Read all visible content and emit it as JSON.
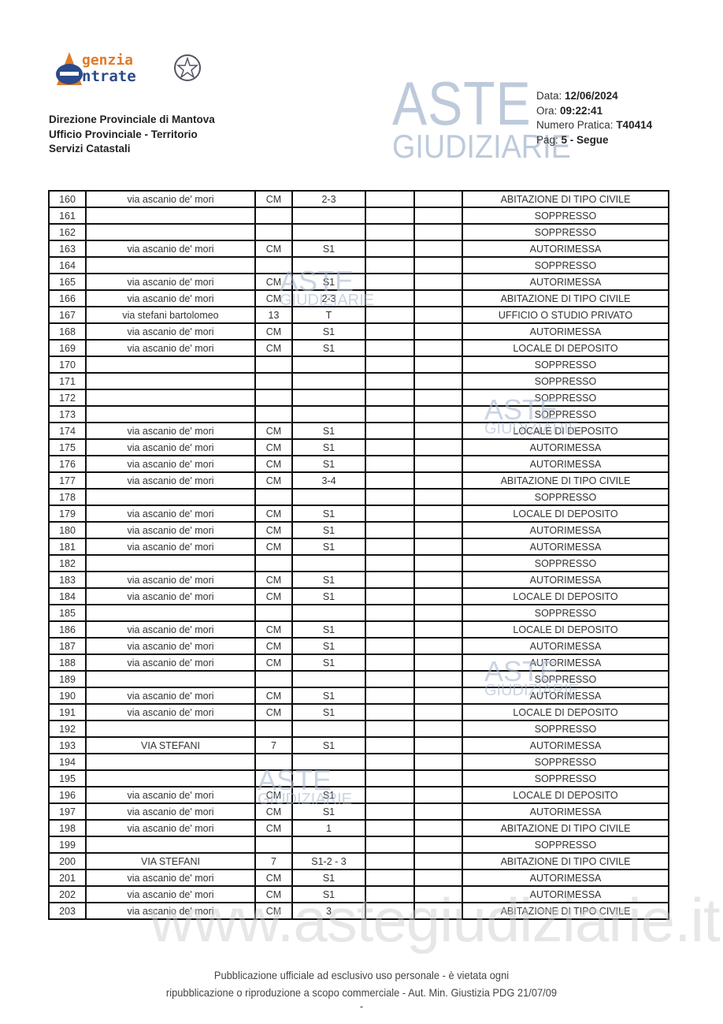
{
  "header": {
    "logo_text": "Agenzia Entrate",
    "office_lines": [
      "Direzione Provinciale di Mantova",
      "Ufficio Provinciale - Territorio",
      "Servizi Catastali"
    ],
    "data_label": "Data:",
    "data_value": "12/06/2024",
    "ora_label": "Ora:",
    "ora_value": "09:22:41",
    "pratica_label": "Numero Pratica:",
    "pratica_value": "T40414",
    "pag_label": "Pag:",
    "pag_value": "5 - Segue"
  },
  "watermark": {
    "line1": "ASTE",
    "line2": "GIUDIZIARIE",
    "url": "www.astegiudiziarie.it"
  },
  "table": {
    "rows": [
      [
        "160",
        "via ascanio de' mori",
        "CM",
        "2-3",
        "",
        "",
        "ABITAZIONE DI TIPO CIVILE"
      ],
      [
        "161",
        "",
        "",
        "",
        "",
        "",
        "SOPPRESSO"
      ],
      [
        "162",
        "",
        "",
        "",
        "",
        "",
        "SOPPRESSO"
      ],
      [
        "163",
        "via ascanio de' mori",
        "CM",
        "S1",
        "",
        "",
        "AUTORIMESSA"
      ],
      [
        "164",
        "",
        "",
        "",
        "",
        "",
        "SOPPRESSO"
      ],
      [
        "165",
        "via ascanio de' mori",
        "CM",
        "S1",
        "",
        "",
        "AUTORIMESSA"
      ],
      [
        "166",
        "via ascanio de' mori",
        "CM",
        "2-3",
        "",
        "",
        "ABITAZIONE DI TIPO CIVILE"
      ],
      [
        "167",
        "via stefani bartolomeo",
        "13",
        "T",
        "",
        "",
        "UFFICIO O STUDIO PRIVATO"
      ],
      [
        "168",
        "via ascanio de' mori",
        "CM",
        "S1",
        "",
        "",
        "AUTORIMESSA"
      ],
      [
        "169",
        "via ascanio de' mori",
        "CM",
        "S1",
        "",
        "",
        "LOCALE DI DEPOSITO"
      ],
      [
        "170",
        "",
        "",
        "",
        "",
        "",
        "SOPPRESSO"
      ],
      [
        "171",
        "",
        "",
        "",
        "",
        "",
        "SOPPRESSO"
      ],
      [
        "172",
        "",
        "",
        "",
        "",
        "",
        "SOPPRESSO"
      ],
      [
        "173",
        "",
        "",
        "",
        "",
        "",
        "SOPPRESSO"
      ],
      [
        "174",
        "via ascanio de' mori",
        "CM",
        "S1",
        "",
        "",
        "LOCALE DI DEPOSITO"
      ],
      [
        "175",
        "via ascanio de' mori",
        "CM",
        "S1",
        "",
        "",
        "AUTORIMESSA"
      ],
      [
        "176",
        "via ascanio de' mori",
        "CM",
        "S1",
        "",
        "",
        "AUTORIMESSA"
      ],
      [
        "177",
        "via ascanio de' mori",
        "CM",
        "3-4",
        "",
        "",
        "ABITAZIONE DI TIPO CIVILE"
      ],
      [
        "178",
        "",
        "",
        "",
        "",
        "",
        "SOPPRESSO"
      ],
      [
        "179",
        "via ascanio de' mori",
        "CM",
        "S1",
        "",
        "",
        "LOCALE DI DEPOSITO"
      ],
      [
        "180",
        "via ascanio de' mori",
        "CM",
        "S1",
        "",
        "",
        "AUTORIMESSA"
      ],
      [
        "181",
        "via ascanio de' mori",
        "CM",
        "S1",
        "",
        "",
        "AUTORIMESSA"
      ],
      [
        "182",
        "",
        "",
        "",
        "",
        "",
        "SOPPRESSO"
      ],
      [
        "183",
        "via ascanio de' mori",
        "CM",
        "S1",
        "",
        "",
        "AUTORIMESSA"
      ],
      [
        "184",
        "via ascanio de' mori",
        "CM",
        "S1",
        "",
        "",
        "LOCALE DI DEPOSITO"
      ],
      [
        "185",
        "",
        "",
        "",
        "",
        "",
        "SOPPRESSO"
      ],
      [
        "186",
        "via ascanio de' mori",
        "CM",
        "S1",
        "",
        "",
        "LOCALE DI DEPOSITO"
      ],
      [
        "187",
        "via ascanio de' mori",
        "CM",
        "S1",
        "",
        "",
        "AUTORIMESSA"
      ],
      [
        "188",
        "via ascanio de' mori",
        "CM",
        "S1",
        "",
        "",
        "AUTORIMESSA"
      ],
      [
        "189",
        "",
        "",
        "",
        "",
        "",
        "SOPPRESSO"
      ],
      [
        "190",
        "via ascanio de' mori",
        "CM",
        "S1",
        "",
        "",
        "AUTORIMESSA"
      ],
      [
        "191",
        "via ascanio de' mori",
        "CM",
        "S1",
        "",
        "",
        "LOCALE DI DEPOSITO"
      ],
      [
        "192",
        "",
        "",
        "",
        "",
        "",
        "SOPPRESSO"
      ],
      [
        "193",
        "VIA STEFANI",
        "7",
        "S1",
        "",
        "",
        "AUTORIMESSA"
      ],
      [
        "194",
        "",
        "",
        "",
        "",
        "",
        "SOPPRESSO"
      ],
      [
        "195",
        "",
        "",
        "",
        "",
        "",
        "SOPPRESSO"
      ],
      [
        "196",
        "via ascanio de' mori",
        "CM",
        "S1",
        "",
        "",
        "LOCALE DI DEPOSITO"
      ],
      [
        "197",
        "via ascanio de' mori",
        "CM",
        "S1",
        "",
        "",
        "AUTORIMESSA"
      ],
      [
        "198",
        "via ascanio de' mori",
        "CM",
        "1",
        "",
        "",
        "ABITAZIONE DI TIPO CIVILE"
      ],
      [
        "199",
        "",
        "",
        "",
        "",
        "",
        "SOPPRESSO"
      ],
      [
        "200",
        "VIA STEFANI",
        "7",
        "S1-2 - 3",
        "",
        "",
        "ABITAZIONE DI TIPO CIVILE"
      ],
      [
        "201",
        "via ascanio de' mori",
        "CM",
        "S1",
        "",
        "",
        "AUTORIMESSA"
      ],
      [
        "202",
        "via ascanio de' mori",
        "CM",
        "S1",
        "",
        "",
        "AUTORIMESSA"
      ],
      [
        "203",
        "via ascanio de' mori",
        "CM",
        "3",
        "",
        "",
        "ABITAZIONE DI TIPO CIVILE"
      ]
    ]
  },
  "footer": {
    "line1": "Pubblicazione ufficiale ad esclusivo uso personale - è vietata ogni",
    "line2": "ripubblicazione o riproduzione a scopo commerciale - Aut. Min. Giustizia PDG 21/07/09",
    "line3": "-"
  }
}
